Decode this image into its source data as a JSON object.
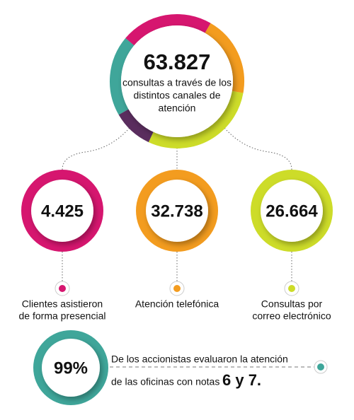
{
  "main": {
    "value": "63.827",
    "caption_lines": [
      "consultas a través de los",
      "distintos canales de",
      "atención"
    ]
  },
  "channels": [
    {
      "value": "4.425",
      "label_lines": [
        "Clientes asistieron",
        "de forma presencial"
      ]
    },
    {
      "value": "32.738",
      "label_lines": [
        "Atención telefónica"
      ]
    },
    {
      "value": "26.664",
      "label_lines": [
        "Consultas por",
        "correo electrónico"
      ]
    }
  ],
  "rating": {
    "value": "99%",
    "line1": "De los accionistas evaluaron la atención",
    "line2": "de las oficinas con notas",
    "highlight": "6 y 7."
  }
}
